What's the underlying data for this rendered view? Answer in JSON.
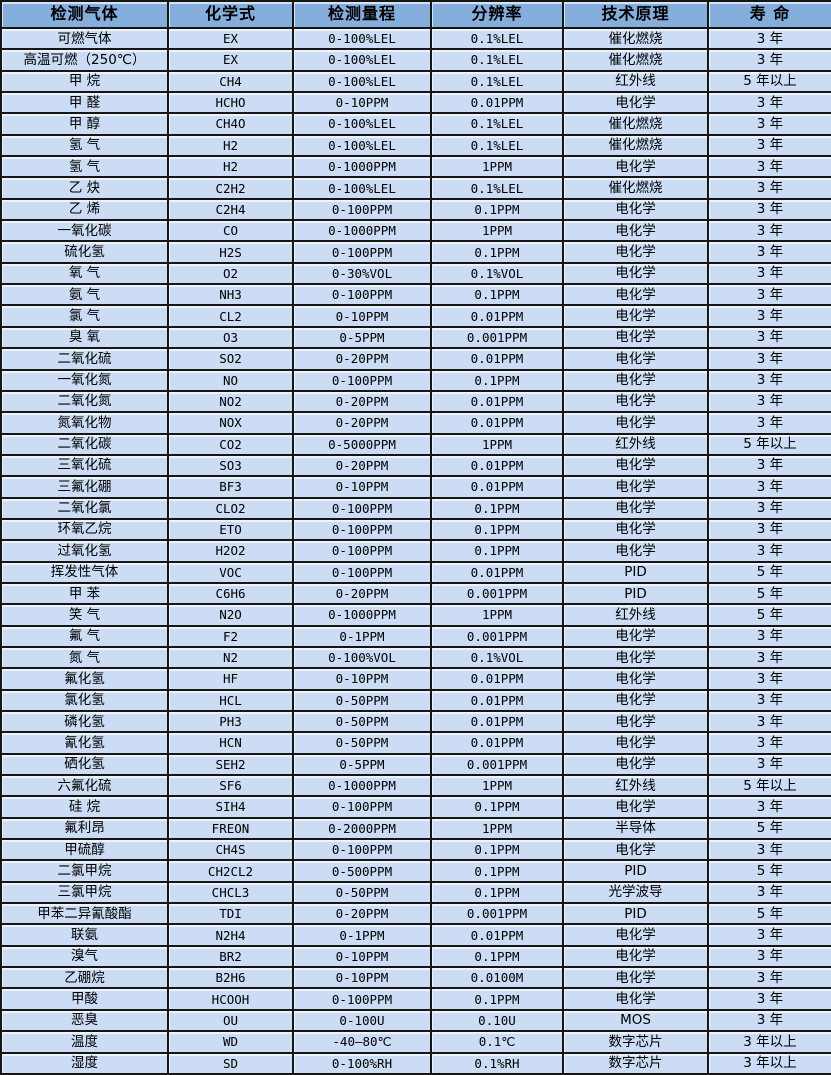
{
  "colors": {
    "header_bg": "#85aedd",
    "row_bg": "#cbdcf4",
    "border": "#161616",
    "text": "#000000"
  },
  "table": {
    "headers": [
      "检测气体",
      "化学式",
      "检测量程",
      "分辨率",
      "技术原理",
      "寿 命"
    ],
    "rows": [
      [
        "可燃气体",
        "EX",
        "0-100%LEL",
        "0.1%LEL",
        "催化燃烧",
        "3 年"
      ],
      [
        "高温可燃（250℃）",
        "EX",
        "0-100%LEL",
        "0.1%LEL",
        "催化燃烧",
        "3 年"
      ],
      [
        "甲 烷",
        "CH4",
        "0-100%LEL",
        "0.1%LEL",
        "红外线",
        "5 年以上"
      ],
      [
        "甲 醛",
        "HCHO",
        "0-10PPM",
        "0.01PPM",
        "电化学",
        "3 年"
      ],
      [
        "甲 醇",
        "CH4O",
        "0-100%LEL",
        "0.1%LEL",
        "催化燃烧",
        "3 年"
      ],
      [
        "氢 气",
        "H2",
        "0-100%LEL",
        "0.1%LEL",
        "催化燃烧",
        "3 年"
      ],
      [
        "氢 气",
        "H2",
        "0-1000PPM",
        "1PPM",
        "电化学",
        "3 年"
      ],
      [
        "乙 炔",
        "C2H2",
        "0-100%LEL",
        "0.1%LEL",
        "催化燃烧",
        "3 年"
      ],
      [
        "乙 烯",
        "C2H4",
        "0-100PPM",
        "0.1PPM",
        "电化学",
        "3 年"
      ],
      [
        "一氧化碳",
        "CO",
        "0-1000PPM",
        "1PPM",
        "电化学",
        "3 年"
      ],
      [
        "硫化氢",
        "H2S",
        "0-100PPM",
        "0.1PPM",
        "电化学",
        "3 年"
      ],
      [
        "氧 气",
        "O2",
        "0-30%VOL",
        "0.1%VOL",
        "电化学",
        "3 年"
      ],
      [
        "氨 气",
        "NH3",
        "0-100PPM",
        "0.1PPM",
        "电化学",
        "3 年"
      ],
      [
        "氯 气",
        "CL2",
        "0-10PPM",
        "0.01PPM",
        "电化学",
        "3 年"
      ],
      [
        "臭 氧",
        "O3",
        "0-5PPM",
        "0.001PPM",
        "电化学",
        "3 年"
      ],
      [
        "二氧化硫",
        "SO2",
        "0-20PPM",
        "0.01PPM",
        "电化学",
        "3 年"
      ],
      [
        "一氧化氮",
        "NO",
        "0-100PPM",
        "0.1PPM",
        "电化学",
        "3 年"
      ],
      [
        "二氧化氮",
        "NO2",
        "0-20PPM",
        "0.01PPM",
        "电化学",
        "3 年"
      ],
      [
        "氮氧化物",
        "NOX",
        "0-20PPM",
        "0.01PPM",
        "电化学",
        "3 年"
      ],
      [
        "二氧化碳",
        "CO2",
        "0-5000PPM",
        "1PPM",
        "红外线",
        "5 年以上"
      ],
      [
        "三氧化硫",
        "SO3",
        "0-20PPM",
        "0.01PPM",
        "电化学",
        "3 年"
      ],
      [
        "三氟化硼",
        "BF3",
        "0-10PPM",
        "0.01PPM",
        "电化学",
        "3 年"
      ],
      [
        "二氧化氯",
        "CLO2",
        "0-100PPM",
        "0.1PPM",
        "电化学",
        "3 年"
      ],
      [
        "环氧乙烷",
        "ETO",
        "0-100PPM",
        "0.1PPM",
        "电化学",
        "3 年"
      ],
      [
        "过氧化氢",
        "H2O2",
        "0-100PPM",
        "0.1PPM",
        "电化学",
        "3 年"
      ],
      [
        "挥发性气体",
        "VOC",
        "0-100PPM",
        "0.01PPM",
        "PID",
        "5 年"
      ],
      [
        "甲 苯",
        "C6H6",
        "0-20PPM",
        "0.001PPM",
        "PID",
        "5 年"
      ],
      [
        "笑 气",
        "N2O",
        "0-1000PPM",
        "1PPM",
        "红外线",
        "5 年"
      ],
      [
        "氟 气",
        "F2",
        "0-1PPM",
        "0.001PPM",
        "电化学",
        "3 年"
      ],
      [
        "氮 气",
        "N2",
        "0-100%VOL",
        "0.1%VOL",
        "电化学",
        "3 年"
      ],
      [
        "氟化氢",
        "HF",
        "0-10PPM",
        "0.01PPM",
        "电化学",
        "3 年"
      ],
      [
        "氯化氢",
        "HCL",
        "0-50PPM",
        "0.01PPM",
        "电化学",
        "3 年"
      ],
      [
        "磷化氢",
        "PH3",
        "0-50PPM",
        "0.01PPM",
        "电化学",
        "3 年"
      ],
      [
        "氰化氢",
        "HCN",
        "0-50PPM",
        "0.01PPM",
        "电化学",
        "3 年"
      ],
      [
        "硒化氢",
        "SEH2",
        "0-5PPM",
        "0.001PPM",
        "电化学",
        "3 年"
      ],
      [
        "六氟化硫",
        "SF6",
        "0-1000PPM",
        "1PPM",
        "红外线",
        "5 年以上"
      ],
      [
        "硅 烷",
        "SIH4",
        "0-100PPM",
        "0.1PPM",
        "电化学",
        "3 年"
      ],
      [
        "氟利昂",
        "FREON",
        "0-2000PPM",
        "1PPM",
        "半导体",
        "5 年"
      ],
      [
        "甲硫醇",
        "CH4S",
        "0-100PPM",
        "0.1PPM",
        "电化学",
        "3 年"
      ],
      [
        "二氯甲烷",
        "CH2CL2",
        "0-500PPM",
        "0.1PPM",
        "PID",
        "5 年"
      ],
      [
        "三氯甲烷",
        "CHCL3",
        "0-50PPM",
        "0.1PPM",
        "光学波导",
        "3 年"
      ],
      [
        "甲苯二异氰酸酯",
        "TDI",
        "0-20PPM",
        "0.001PPM",
        "PID",
        "5 年"
      ],
      [
        "联氨",
        "N2H4",
        "0-1PPM",
        "0.01PPM",
        "电化学",
        "3 年"
      ],
      [
        "溴气",
        "BR2",
        "0-10PPM",
        "0.1PPM",
        "电化学",
        "3 年"
      ],
      [
        "乙硼烷",
        "B2H6",
        "0-10PPM",
        "0.0100M",
        "电化学",
        "3 年"
      ],
      [
        "甲酸",
        "HCOOH",
        "0-100PPM",
        "0.1PPM",
        "电化学",
        "3 年"
      ],
      [
        "恶臭",
        "OU",
        "0-100U",
        "0.10U",
        "MOS",
        "3 年"
      ],
      [
        "温度",
        "WD",
        "-40—80℃",
        "0.1℃",
        "数字芯片",
        "3 年以上"
      ],
      [
        "湿度",
        "SD",
        "0-100%RH",
        "0.1%RH",
        "数字芯片",
        "3 年以上"
      ]
    ]
  }
}
